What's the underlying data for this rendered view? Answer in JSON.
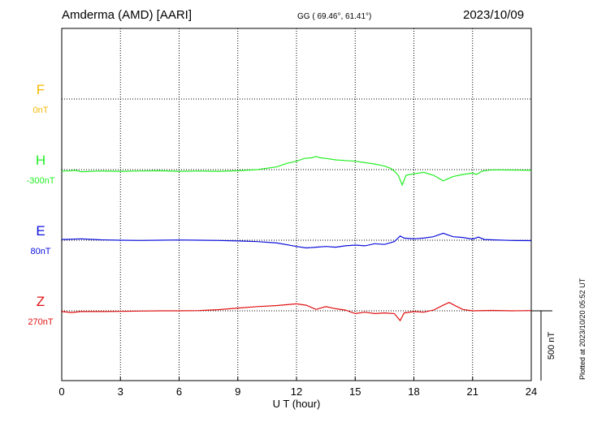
{
  "header": {
    "station": "Amderma (AMD)  [AARI]",
    "coords": "GG ( 69.46°,  61.41°)",
    "date": "2023/10/09"
  },
  "footnote": "Plotted at 2023/10/20 05:52 UT",
  "chart_data": {
    "type": "line",
    "xlabel": "U T (hour)",
    "xlim": [
      0,
      24
    ],
    "xticks": [
      0,
      3,
      6,
      9,
      12,
      15,
      18,
      21,
      24
    ],
    "scale_bar": "500 nT",
    "grid": true,
    "series": [
      {
        "name": "F",
        "baseline_label": "0nT",
        "color": "#f5b800",
        "points": []
      },
      {
        "name": "H",
        "baseline_label": "-300nT",
        "color": "#22ee22",
        "points": [
          [
            0,
            -10
          ],
          [
            0.3,
            -10
          ],
          [
            0.7,
            -5
          ],
          [
            1,
            -15
          ],
          [
            1.5,
            -12
          ],
          [
            2,
            -10
          ],
          [
            3,
            -12
          ],
          [
            4,
            -10
          ],
          [
            5,
            -8
          ],
          [
            6,
            -12
          ],
          [
            7,
            -10
          ],
          [
            8,
            -12
          ],
          [
            9,
            -8
          ],
          [
            10,
            0
          ],
          [
            11,
            20
          ],
          [
            11.5,
            45
          ],
          [
            12,
            60
          ],
          [
            12.4,
            80
          ],
          [
            12.8,
            85
          ],
          [
            13,
            95
          ],
          [
            13.2,
            85
          ],
          [
            13.5,
            80
          ],
          [
            14,
            70
          ],
          [
            14.5,
            65
          ],
          [
            15,
            60
          ],
          [
            15.5,
            50
          ],
          [
            16,
            40
          ],
          [
            16.5,
            25
          ],
          [
            16.8,
            10
          ],
          [
            17,
            -10
          ],
          [
            17.2,
            -40
          ],
          [
            17.4,
            -110
          ],
          [
            17.6,
            -40
          ],
          [
            18,
            -30
          ],
          [
            18.5,
            -20
          ],
          [
            19,
            -40
          ],
          [
            19.5,
            -80
          ],
          [
            20,
            -50
          ],
          [
            20.5,
            -35
          ],
          [
            21,
            -25
          ],
          [
            21.2,
            -35
          ],
          [
            21.5,
            -10
          ],
          [
            22,
            -2
          ],
          [
            23,
            -3
          ],
          [
            24,
            -5
          ]
        ]
      },
      {
        "name": "E",
        "baseline_label": "80nT",
        "color": "#0b10dc",
        "points": [
          [
            0,
            5
          ],
          [
            1,
            10
          ],
          [
            2,
            3
          ],
          [
            3,
            0
          ],
          [
            4,
            -2
          ],
          [
            5,
            0
          ],
          [
            6,
            2
          ],
          [
            7,
            0
          ],
          [
            8,
            -2
          ],
          [
            9,
            -5
          ],
          [
            10,
            -10
          ],
          [
            11,
            -20
          ],
          [
            12,
            -45
          ],
          [
            12.5,
            -55
          ],
          [
            13,
            -50
          ],
          [
            13.5,
            -45
          ],
          [
            14,
            -50
          ],
          [
            14.5,
            -40
          ],
          [
            15,
            -35
          ],
          [
            15.5,
            -40
          ],
          [
            16,
            -25
          ],
          [
            16.5,
            -30
          ],
          [
            17,
            -10
          ],
          [
            17.3,
            30
          ],
          [
            17.5,
            15
          ],
          [
            18,
            10
          ],
          [
            18.5,
            15
          ],
          [
            19,
            25
          ],
          [
            19.5,
            50
          ],
          [
            20,
            25
          ],
          [
            20.5,
            20
          ],
          [
            21,
            8
          ],
          [
            21.3,
            22
          ],
          [
            21.6,
            5
          ],
          [
            22,
            3
          ],
          [
            23,
            -2
          ],
          [
            24,
            -3
          ]
        ]
      },
      {
        "name": "Z",
        "baseline_label": "270nT",
        "color": "#e01010",
        "points": [
          [
            0,
            -5
          ],
          [
            0.5,
            -12
          ],
          [
            1,
            -5
          ],
          [
            2,
            -5
          ],
          [
            3,
            -4
          ],
          [
            4,
            -2
          ],
          [
            5,
            0
          ],
          [
            6,
            0
          ],
          [
            7,
            2
          ],
          [
            8,
            8
          ],
          [
            9,
            20
          ],
          [
            10,
            30
          ],
          [
            11,
            38
          ],
          [
            12,
            50
          ],
          [
            12.5,
            40
          ],
          [
            13,
            10
          ],
          [
            13.5,
            30
          ],
          [
            14,
            15
          ],
          [
            14.5,
            5
          ],
          [
            15,
            -20
          ],
          [
            15.5,
            -10
          ],
          [
            16,
            -20
          ],
          [
            16.5,
            -15
          ],
          [
            17,
            -20
          ],
          [
            17.3,
            -70
          ],
          [
            17.5,
            -15
          ],
          [
            18,
            -5
          ],
          [
            18.5,
            -10
          ],
          [
            19,
            5
          ],
          [
            19.5,
            40
          ],
          [
            19.8,
            60
          ],
          [
            20,
            45
          ],
          [
            20.5,
            10
          ],
          [
            21,
            0
          ],
          [
            22,
            3
          ],
          [
            23,
            0
          ],
          [
            24,
            2
          ]
        ]
      }
    ]
  }
}
